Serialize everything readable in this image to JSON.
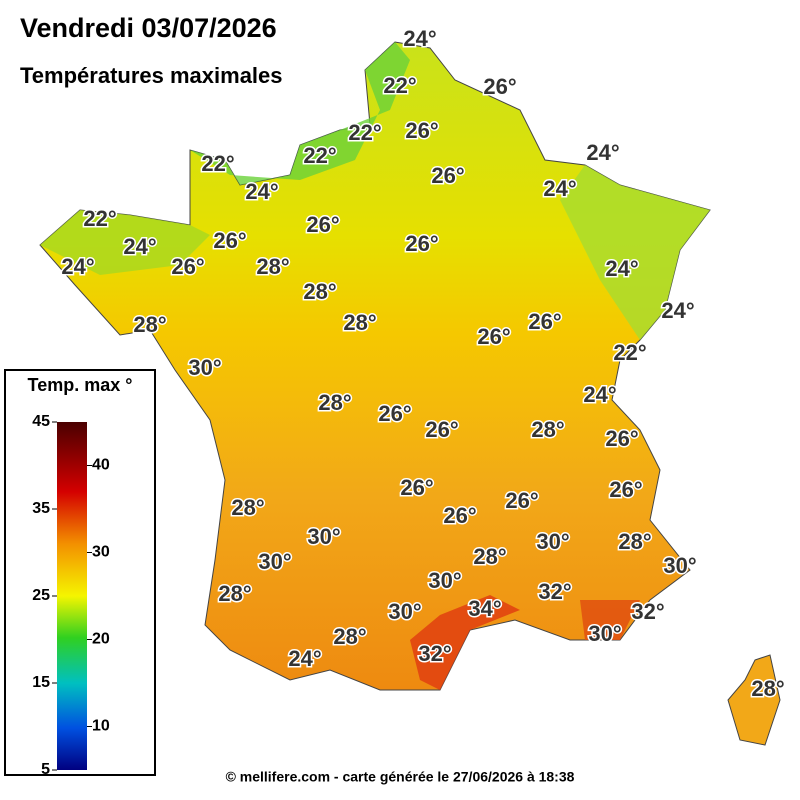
{
  "header": {
    "title": "Vendredi 03/07/2026",
    "subtitle": "Températures maximales"
  },
  "legend": {
    "title": "Temp. max °",
    "range": [
      5,
      45
    ],
    "ticks_left": [
      45,
      35,
      25,
      15,
      5
    ],
    "ticks_right": [
      40,
      30,
      20,
      10
    ]
  },
  "labels": [
    "24°",
    "22°",
    "26°",
    "22°",
    "26°",
    "22°",
    "22°",
    "26°",
    "24°",
    "24°",
    "24°",
    "22°",
    "26°",
    "24°",
    "26°",
    "26°",
    "24°",
    "26°",
    "28°",
    "24°",
    "28°",
    "24°",
    "28°",
    "28°",
    "26°",
    "26°",
    "22°",
    "30°",
    "24°",
    "28°",
    "26°",
    "26°",
    "28°",
    "26°",
    "26°",
    "26°",
    "26°",
    "28°",
    "26°",
    "30°",
    "30°",
    "28°",
    "30°",
    "28°",
    "30°",
    "30°",
    "28°",
    "32°",
    "34°",
    "30°",
    "32°",
    "28°",
    "30°",
    "32°",
    "24°",
    "28°"
  ],
  "footer": "© mellifere.com - carte générée le 27/06/2026 à 18:38"
}
